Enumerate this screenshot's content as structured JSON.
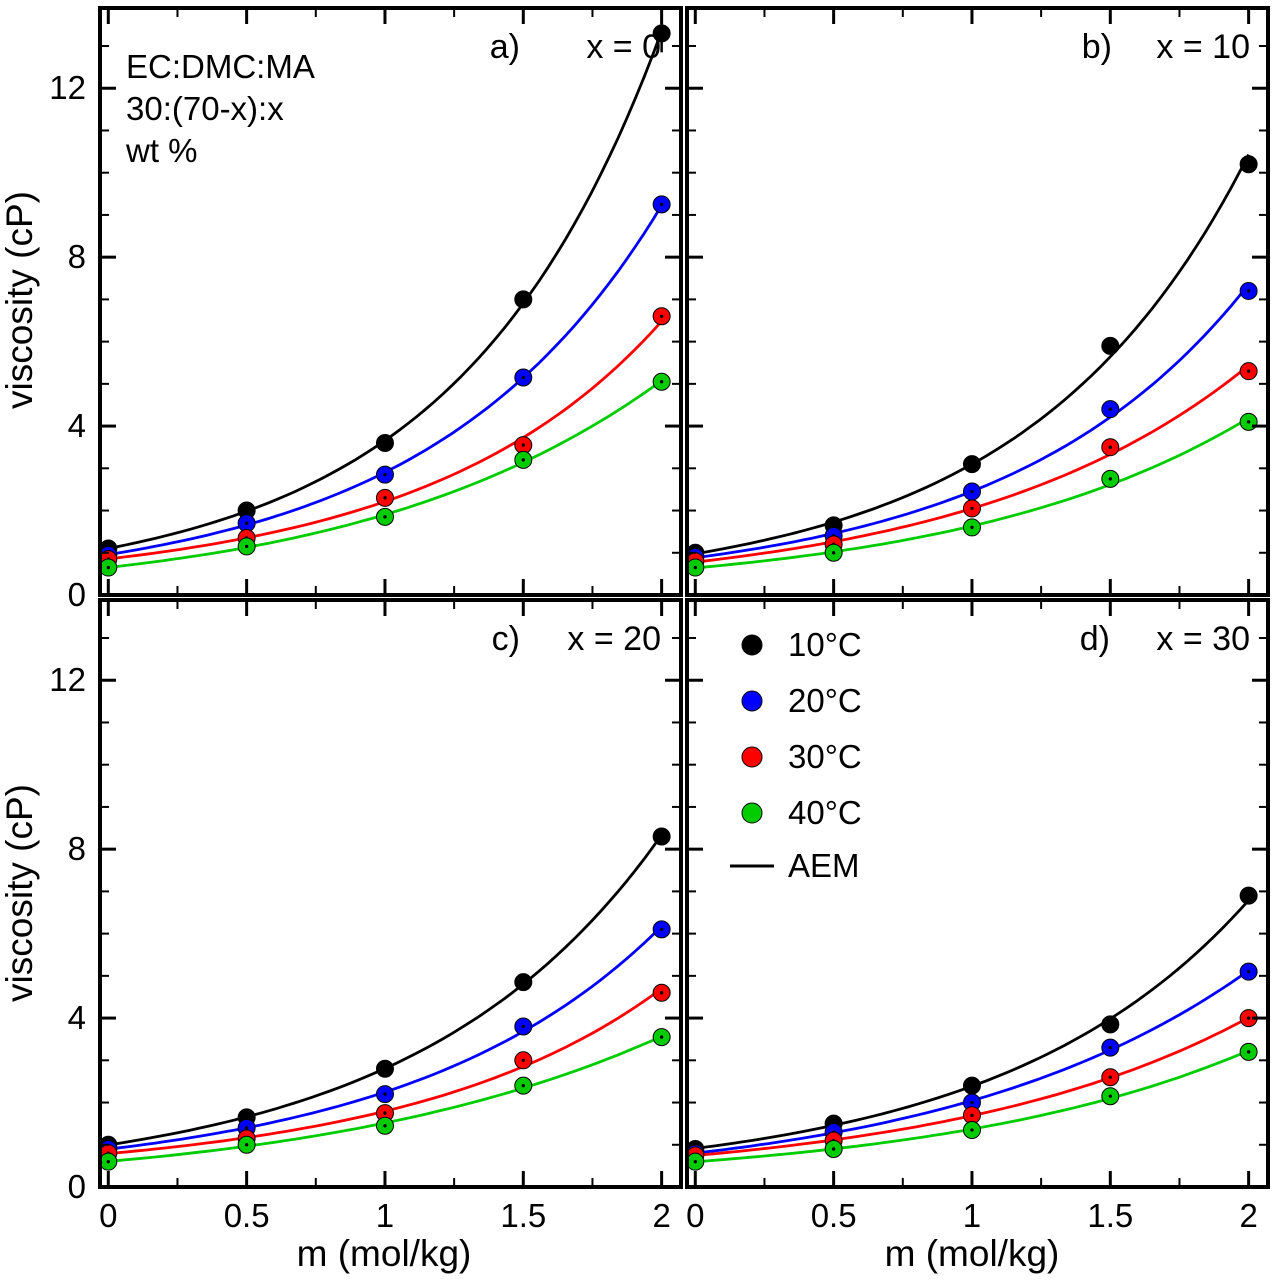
{
  "figure": {
    "background": "#ffffff",
    "annotation": {
      "lines": [
        "EC:DMC:MA",
        "30:(70-x):x",
        "wt %"
      ]
    }
  },
  "chart_data": {
    "type": "scatter",
    "x_label": "m (mol/kg)",
    "y_label": "viscosity (cP)",
    "x": [
      0,
      0.5,
      1,
      1.5,
      2
    ],
    "x_ticks": [
      "0",
      "0.5",
      "1",
      "1.5",
      "2"
    ],
    "x_tick_values": [
      0,
      0.5,
      1,
      1.5,
      2
    ],
    "y_ticks": [
      "0",
      "4",
      "8",
      "12"
    ],
    "y_tick_values": [
      0,
      4,
      8,
      12
    ],
    "xlim": [
      -0.03,
      2.07
    ],
    "ylim": [
      0,
      13.9
    ],
    "x_minor_step": 0.25,
    "y_minor_step": 1,
    "grid": false,
    "legend_position": "inside panel d, top-left",
    "model_label": "AEM",
    "model_line_color": "#000000",
    "temperatures": [
      {
        "label": "10°C",
        "color": "#000000"
      },
      {
        "label": "20°C",
        "color": "#0000ff"
      },
      {
        "label": "30°C",
        "color": "#ff0000"
      },
      {
        "label": "40°C",
        "color": "#00cc00"
      }
    ],
    "panels": [
      {
        "id": "a",
        "label": "a)",
        "title": "x = 0",
        "series": [
          [
            1.1,
            2.0,
            3.6,
            7.0,
            13.3
          ],
          [
            0.95,
            1.7,
            2.85,
            5.15,
            9.25
          ],
          [
            0.85,
            1.35,
            2.3,
            3.55,
            6.6
          ],
          [
            0.65,
            1.15,
            1.85,
            3.2,
            5.05
          ]
        ],
        "error_bars": [
          {
            "series": 0,
            "x": 2,
            "y": 13.3,
            "err": 0.45
          }
        ]
      },
      {
        "id": "b",
        "label": "b)",
        "title": "x = 10",
        "series": [
          [
            1.0,
            1.65,
            3.1,
            5.9,
            10.2
          ],
          [
            0.9,
            1.4,
            2.45,
            4.4,
            7.2
          ],
          [
            0.8,
            1.2,
            2.05,
            3.5,
            5.3
          ],
          [
            0.65,
            1.0,
            1.6,
            2.75,
            4.1
          ]
        ],
        "error_bars": []
      },
      {
        "id": "c",
        "label": "c)",
        "title": "x = 20",
        "series": [
          [
            1.0,
            1.65,
            2.8,
            4.85,
            8.3
          ],
          [
            0.9,
            1.4,
            2.2,
            3.8,
            6.1
          ],
          [
            0.8,
            1.15,
            1.75,
            3.0,
            4.6
          ],
          [
            0.6,
            1.0,
            1.45,
            2.4,
            3.55
          ]
        ],
        "error_bars": []
      },
      {
        "id": "d",
        "label": "d)",
        "title": "x = 30",
        "series": [
          [
            0.9,
            1.5,
            2.4,
            3.85,
            6.9
          ],
          [
            0.8,
            1.3,
            2.0,
            3.3,
            5.1
          ],
          [
            0.75,
            1.1,
            1.7,
            2.6,
            4.0
          ],
          [
            0.6,
            0.9,
            1.35,
            2.15,
            3.2
          ]
        ],
        "error_bars": []
      }
    ]
  }
}
